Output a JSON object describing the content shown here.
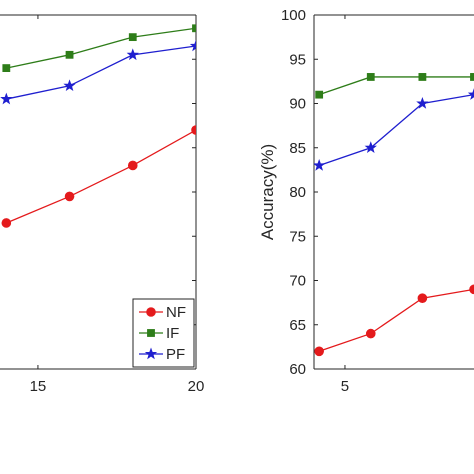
{
  "chart_data": [
    {
      "type": "line",
      "title": "",
      "xlabel": "",
      "ylabel": "",
      "xlim": [
        13.8,
        20
      ],
      "ylim": [
        60,
        100
      ],
      "x_ticks": [
        15,
        20
      ],
      "x_tick_labels": [
        "15",
        "20"
      ],
      "legend": {
        "placement": "bottom-right",
        "entries": [
          "NF",
          "IF",
          "PF"
        ]
      },
      "grid": false,
      "series": [
        {
          "name": "NF",
          "color": "#e41a1c",
          "marker": "circle",
          "x": [
            14,
            16,
            18,
            20
          ],
          "y": [
            76.5,
            79.5,
            83.0,
            87.0
          ]
        },
        {
          "name": "IF",
          "color": "#2e7d19",
          "marker": "square",
          "x": [
            14,
            16,
            18,
            20
          ],
          "y": [
            94.0,
            95.5,
            97.5,
            98.5
          ]
        },
        {
          "name": "PF",
          "color": "#1f1fcf",
          "marker": "star",
          "x": [
            14,
            16,
            18,
            20
          ],
          "y": [
            90.5,
            92.0,
            95.5,
            96.5
          ]
        }
      ]
    },
    {
      "type": "line",
      "title": "",
      "xlabel": "",
      "ylabel": "Accuracy(%)",
      "xlim": [
        3.8,
        10
      ],
      "ylim": [
        60,
        100
      ],
      "x_ticks": [
        5
      ],
      "x_tick_labels": [
        "5"
      ],
      "y_ticks": [
        60,
        65,
        70,
        75,
        80,
        85,
        90,
        95,
        100
      ],
      "y_tick_labels": [
        "60",
        "65",
        "70",
        "75",
        "80",
        "85",
        "90",
        "95",
        "100"
      ],
      "grid": false,
      "series": [
        {
          "name": "NF",
          "color": "#e41a1c",
          "marker": "circle",
          "x": [
            4,
            6,
            8,
            10
          ],
          "y": [
            62,
            64,
            68,
            69
          ]
        },
        {
          "name": "IF",
          "color": "#2e7d19",
          "marker": "square",
          "x": [
            4,
            6,
            8,
            10
          ],
          "y": [
            91,
            93,
            93,
            93
          ]
        },
        {
          "name": "PF",
          "color": "#1f1fcf",
          "marker": "star",
          "x": [
            4,
            6,
            8,
            10
          ],
          "y": [
            83,
            85,
            90,
            91
          ]
        }
      ]
    }
  ]
}
